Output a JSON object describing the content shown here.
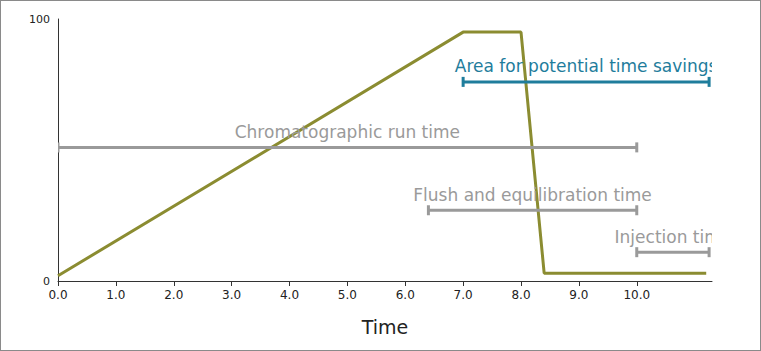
{
  "chart_data": {
    "type": "line",
    "x": [
      0,
      7.0,
      8.0,
      8.4,
      11.2
    ],
    "values": [
      2,
      95,
      95,
      3,
      3
    ],
    "color": "#8b8c31",
    "xlabel": "Time",
    "xlim": [
      0,
      11.3
    ],
    "ylim": [
      0,
      100
    ],
    "xticks": [
      {
        "value": 0,
        "label": "0.0"
      },
      {
        "value": 1,
        "label": "1.0"
      },
      {
        "value": 2,
        "label": "2.0"
      },
      {
        "value": 3,
        "label": "3.0"
      },
      {
        "value": 4,
        "label": "4.0"
      },
      {
        "value": 5,
        "label": "5.0"
      },
      {
        "value": 6,
        "label": "6.0"
      },
      {
        "value": 7,
        "label": "7.0"
      },
      {
        "value": 8,
        "label": "8.0"
      },
      {
        "value": 9,
        "label": "9.0"
      },
      {
        "value": 10,
        "label": "10.0"
      }
    ],
    "yticks": [
      0,
      100
    ],
    "grid": false,
    "annotations": [
      {
        "text": "Area for potential time savings",
        "x_start": 7.0,
        "x_end": 11.25,
        "y": 76,
        "color": "#1f7d9c"
      },
      {
        "text": "Chromatographic run time",
        "x_start": 0,
        "x_end": 10.0,
        "y": 51,
        "color": "#9a9a9a"
      },
      {
        "text": "Flush and equilibration time",
        "x_start": 6.4,
        "x_end": 10.0,
        "y": 27,
        "color": "#9a9a9a"
      },
      {
        "text": "Injection time",
        "x_start": 10.0,
        "x_end": 11.25,
        "y": 11,
        "color": "#9a9a9a"
      }
    ]
  }
}
